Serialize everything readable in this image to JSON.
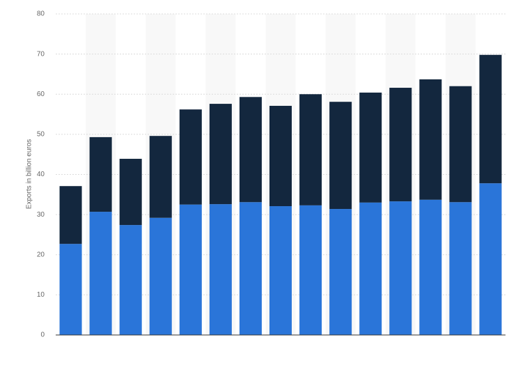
{
  "chart_data": {
    "type": "stacked-bar",
    "y_label": "Exports in billion euros",
    "categories": [
      null,
      null,
      null,
      null,
      null,
      null,
      null,
      null,
      null,
      null,
      null,
      null,
      null,
      null,
      null
    ],
    "series": [
      {
        "color": "#2a75d9",
        "values": [
          22.7,
          30.7,
          27.4,
          29.2,
          32.5,
          32.6,
          33.1,
          32.1,
          32.3,
          31.4,
          33.0,
          33.3,
          33.7,
          33.1,
          37.8
        ]
      },
      {
        "color": "#13273e",
        "values": [
          14.4,
          18.6,
          16.5,
          20.4,
          23.7,
          25.0,
          26.2,
          25.0,
          27.7,
          26.7,
          27.4,
          28.3,
          30.0,
          28.9,
          32.0
        ]
      }
    ],
    "ylim": [
      0,
      80
    ],
    "yticks": [
      0,
      10,
      20,
      30,
      40,
      50,
      60,
      70,
      80
    ],
    "grid": true
  }
}
